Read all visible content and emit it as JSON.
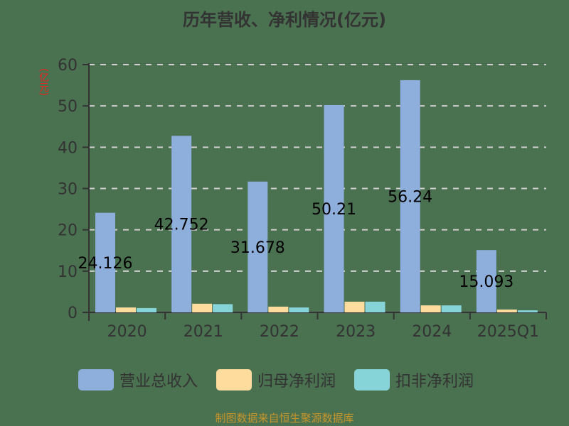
{
  "title": "历年营收、净利情况(亿元)",
  "y_unit": "(亿元)",
  "source": "制图数据来自恒生聚源数据库",
  "legend": [
    {
      "label": "营业总收入",
      "color": "#8eaedc"
    },
    {
      "label": "归母净利润",
      "color": "#fddc9e"
    },
    {
      "label": "扣非净利润",
      "color": "#86d4d8"
    }
  ],
  "colors": {
    "grid": "#d0d0d0",
    "axis": "#333333",
    "label": "#000000",
    "background": "#4a7150"
  },
  "chart_data": {
    "type": "bar",
    "title": "历年营收、净利情况(亿元)",
    "xlabel": "",
    "ylabel": "(亿元)",
    "ylim": [
      0,
      60
    ],
    "yticks": [
      0,
      10,
      20,
      30,
      40,
      50,
      60
    ],
    "grid": true,
    "legend_position": "bottom",
    "categories": [
      "2020",
      "2021",
      "2022",
      "2023",
      "2024",
      "2025Q1"
    ],
    "series": [
      {
        "name": "营业总收入",
        "values": [
          24.126,
          42.752,
          31.678,
          50.21,
          56.24,
          15.093
        ],
        "labels": [
          "24.126",
          "42.752",
          "31.678",
          "50.21",
          "56.24",
          "15.093"
        ]
      },
      {
        "name": "归母净利润",
        "values": [
          1.2,
          2.1,
          1.4,
          2.6,
          1.7,
          0.7
        ]
      },
      {
        "name": "扣非净利润",
        "values": [
          1.05,
          2.0,
          1.2,
          2.6,
          1.7,
          0.5
        ]
      }
    ]
  }
}
